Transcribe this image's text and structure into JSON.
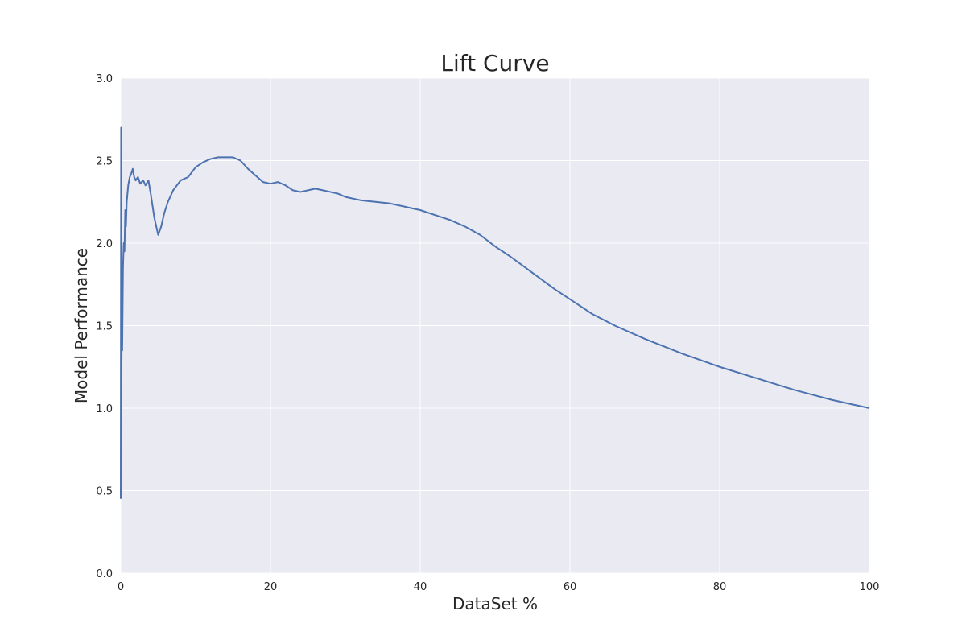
{
  "chart_data": {
    "type": "line",
    "title": "Lift Curve",
    "xlabel": "DataSet %",
    "ylabel": "Model Performance",
    "xlim": [
      0,
      100
    ],
    "ylim": [
      0,
      3.0
    ],
    "grid": true,
    "background_color": "#EAEAF2",
    "line_color": "#4C72B0",
    "xticks": [
      "0",
      "20",
      "40",
      "60",
      "80",
      "100"
    ],
    "yticks": [
      "0.0",
      "0.5",
      "1.0",
      "1.5",
      "2.0",
      "2.5",
      "3.0"
    ],
    "series": [
      {
        "x": [
          0,
          0.05,
          0.1,
          0.15,
          0.2,
          0.3,
          0.4,
          0.5,
          0.6,
          0.7,
          0.8,
          0.9,
          1.0,
          1.2,
          1.4,
          1.6,
          1.8,
          2.0,
          2.3,
          2.6,
          3.0,
          3.3,
          3.7,
          4.0,
          4.5,
          5.0,
          5.4,
          5.8,
          6.3,
          7.0,
          8.0,
          9.0,
          10.0,
          11.0,
          12.0,
          13.0,
          14.0,
          15.0,
          16.0,
          17.0,
          18.0,
          19.0,
          20.0,
          21.0,
          22.0,
          23.0,
          24.0,
          25.0,
          26.0,
          27.0,
          28.0,
          29.0,
          30.0,
          32.0,
          34.0,
          36.0,
          38.0,
          40.0,
          42.0,
          44.0,
          46.0,
          48.0,
          50.0,
          52.0,
          55.0,
          58.0,
          60.0,
          63.0,
          66.0,
          70.0,
          75.0,
          80.0,
          85.0,
          90.0,
          95.0,
          100.0
        ],
        "y": [
          0.45,
          2.7,
          1.2,
          1.6,
          1.35,
          1.85,
          2.0,
          1.95,
          2.2,
          2.1,
          2.25,
          2.3,
          2.35,
          2.4,
          2.42,
          2.45,
          2.4,
          2.38,
          2.4,
          2.36,
          2.38,
          2.35,
          2.38,
          2.3,
          2.15,
          2.05,
          2.1,
          2.18,
          2.25,
          2.32,
          2.38,
          2.4,
          2.46,
          2.49,
          2.51,
          2.52,
          2.52,
          2.52,
          2.5,
          2.45,
          2.41,
          2.37,
          2.36,
          2.37,
          2.35,
          2.32,
          2.31,
          2.32,
          2.33,
          2.32,
          2.31,
          2.3,
          2.28,
          2.26,
          2.25,
          2.24,
          2.22,
          2.2,
          2.17,
          2.14,
          2.1,
          2.05,
          1.98,
          1.92,
          1.82,
          1.72,
          1.66,
          1.57,
          1.5,
          1.42,
          1.33,
          1.25,
          1.18,
          1.11,
          1.05,
          1.0
        ]
      }
    ]
  }
}
